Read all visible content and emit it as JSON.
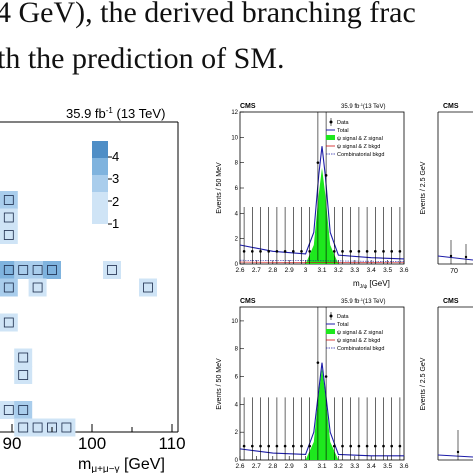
{
  "text": {
    "line1": "4 GeV), the derived branching frac",
    "line2": "th the prediction of SM."
  },
  "heatmap_panel": {
    "lumi": "35.9 fb",
    "lumi_sup": "-1",
    "lumi_energy": " (13 TeV)",
    "xlabel_main": "m",
    "xlabel_sub": "μ+μ−γ",
    "xlabel_unit": " [GeV]",
    "xticks": [
      "90",
      "100",
      "110"
    ]
  },
  "fit_panel": {
    "cms": "CMS",
    "lumi": "35.9 fb",
    "lumi_sup": "-1",
    "lumi_energy": "(13 TeV)",
    "ylabel": "Events / 50 MeV",
    "xlabel_main": "m",
    "xlabel_sub": "J/ψ",
    "xlabel_unit": " [GeV]",
    "xticks": [
      "2.6",
      "2.7",
      "2.8",
      "2.9",
      "3",
      "3.1",
      "3.2",
      "3.3",
      "3.4",
      "3.5",
      "3.6"
    ],
    "legend": [
      "Data",
      "Total",
      "ψ signal & Z signal",
      "ψ signal & Z bkgd",
      "Combinatorial bkgd"
    ]
  },
  "right_panel": {
    "cms": "CMS",
    "ylabel": "Events / 2.5 GeV",
    "xtick": "70"
  },
  "colors": {
    "heat_1": "#cfe4f6",
    "heat_2": "#a9cdec",
    "heat_3": "#7fb3de",
    "heat_4": "#4f8ec6",
    "signal_fill": "#1ee81e",
    "total_line": "#1c1ca8",
    "bkgd_line": "#d01010"
  },
  "chart_data": [
    {
      "type": "heatmap",
      "x_unit": "GeV",
      "xticks": [
        90,
        100,
        110
      ],
      "color_scale": [
        1,
        2,
        3,
        4
      ],
      "cells": [
        {
          "x": 89.6,
          "y": 4,
          "v": 2
        },
        {
          "x": 89.6,
          "y": 3,
          "v": 1
        },
        {
          "x": 89.6,
          "y": 2,
          "v": 1
        },
        {
          "x": 87.8,
          "y": 0,
          "v": 2
        },
        {
          "x": 89.6,
          "y": 0,
          "v": 3
        },
        {
          "x": 91.4,
          "y": 0,
          "v": 2
        },
        {
          "x": 93.2,
          "y": 0,
          "v": 2
        },
        {
          "x": 95.0,
          "y": 0,
          "v": 3
        },
        {
          "x": 102.5,
          "y": 0,
          "v": 1
        },
        {
          "x": 107.0,
          "y": -1,
          "v": 1
        },
        {
          "x": 89.6,
          "y": -1,
          "v": 2
        },
        {
          "x": 93.2,
          "y": -1,
          "v": 1
        },
        {
          "x": 89.6,
          "y": -3,
          "v": 1
        },
        {
          "x": 91.4,
          "y": -5,
          "v": 1
        },
        {
          "x": 91.4,
          "y": -6,
          "v": 1
        },
        {
          "x": 87.8,
          "y": -8,
          "v": 1
        },
        {
          "x": 89.6,
          "y": -8,
          "v": 1
        },
        {
          "x": 91.4,
          "y": -8,
          "v": 2
        },
        {
          "x": 91.4,
          "y": -9,
          "v": 1
        },
        {
          "x": 93.2,
          "y": -9,
          "v": 1
        },
        {
          "x": 95.0,
          "y": -9,
          "v": 1
        },
        {
          "x": 96.8,
          "y": -9,
          "v": 1
        }
      ]
    },
    {
      "type": "line",
      "title": "CMS",
      "xlabel": "m J/ψ [GeV]",
      "ylabel": "Events / 50 MeV",
      "xlim": [
        2.6,
        3.6
      ],
      "ylim": [
        0,
        12
      ],
      "series": [
        {
          "name": "Data",
          "x": [
            2.625,
            2.675,
            2.725,
            2.775,
            2.825,
            2.875,
            2.925,
            2.975,
            3.025,
            3.075,
            3.125,
            3.175,
            3.225,
            3.275,
            3.325,
            3.375,
            3.425,
            3.475,
            3.525,
            3.575
          ],
          "values": [
            1,
            1,
            1,
            1,
            1,
            1,
            1,
            1,
            1,
            8,
            7,
            1,
            1,
            1,
            1,
            1,
            1,
            1,
            1,
            1
          ]
        },
        {
          "name": "Total",
          "x": [
            2.6,
            2.8,
            3.0,
            3.05,
            3.08,
            3.1,
            3.12,
            3.15,
            3.2,
            3.4,
            3.6
          ],
          "values": [
            1.5,
            1.0,
            0.8,
            2.5,
            7.0,
            9.3,
            7.0,
            2.5,
            0.7,
            0.5,
            0.4
          ]
        },
        {
          "name": "ψ signal & Z signal",
          "x": [
            3.0,
            3.05,
            3.08,
            3.1,
            3.12,
            3.15,
            3.2
          ],
          "values": [
            0,
            1.5,
            5.5,
            7.6,
            5.5,
            1.5,
            0
          ]
        },
        {
          "name": "Combinatorial bkgd",
          "x": [
            2.6,
            3.6
          ],
          "values": [
            0.3,
            0.2
          ]
        }
      ]
    },
    {
      "type": "line",
      "title": "CMS",
      "xlabel": "m J/ψ [GeV]",
      "ylabel": "Events / 50 MeV",
      "xlim": [
        2.6,
        3.6
      ],
      "ylim": [
        0,
        11
      ],
      "series": [
        {
          "name": "Total",
          "x": [
            2.6,
            2.8,
            3.0,
            3.05,
            3.08,
            3.1,
            3.12,
            3.15,
            3.2,
            3.4,
            3.6
          ],
          "values": [
            0.8,
            0.5,
            0.4,
            2.0,
            5.0,
            7.0,
            5.0,
            2.0,
            0.4,
            0.3,
            0.3
          ]
        },
        {
          "name": "ψ signal & Z signal",
          "x": [
            3.0,
            3.05,
            3.08,
            3.1,
            3.12,
            3.15,
            3.2
          ],
          "values": [
            0,
            1.3,
            4.8,
            6.6,
            4.8,
            1.3,
            0
          ]
        }
      ]
    }
  ]
}
